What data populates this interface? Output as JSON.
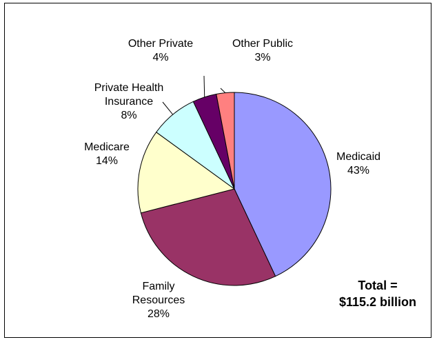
{
  "chart_data": {
    "type": "pie",
    "title": "",
    "slices": [
      {
        "name": "Medicaid",
        "name_lines": [
          "Medicaid"
        ],
        "value": 43,
        "label": "43%",
        "color": "#9999ff"
      },
      {
        "name": "Family Resources",
        "name_lines": [
          "Family",
          "Resources"
        ],
        "value": 28,
        "label": "28%",
        "color": "#993366"
      },
      {
        "name": "Medicare",
        "name_lines": [
          "Medicare"
        ],
        "value": 14,
        "label": "14%",
        "color": "#ffffcc"
      },
      {
        "name": "Private Health Insurance",
        "name_lines": [
          "Private Health",
          "Insurance"
        ],
        "value": 8,
        "label": "8%",
        "color": "#ccffff"
      },
      {
        "name": "Other Private",
        "name_lines": [
          "Other Private"
        ],
        "value": 4,
        "label": "4%",
        "color": "#660066"
      },
      {
        "name": "Other Public",
        "name_lines": [
          "Other Public"
        ],
        "value": 3,
        "label": "3%",
        "color": "#ff8080"
      }
    ],
    "start": "12 o'clock",
    "direction": "clockwise",
    "annotation": [
      "Total =",
      "$115.2 billion"
    ]
  }
}
